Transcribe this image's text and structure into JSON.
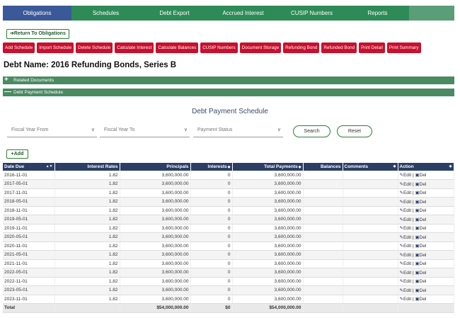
{
  "nav": {
    "tabs": [
      {
        "label": "Obligations",
        "active": true
      },
      {
        "label": "Schedules",
        "active": false
      },
      {
        "label": "Debt Export",
        "active": false
      },
      {
        "label": "Accrued Interest",
        "active": false
      },
      {
        "label": "CUSIP Numbers",
        "active": false
      },
      {
        "label": "Reports",
        "active": false
      }
    ]
  },
  "return_button": "Return To Obligations",
  "actions": [
    "Add Schedule",
    "Import Schedule",
    "Delete Schedule",
    "Calculate Interest",
    "Calculate Balances",
    "CUSIP Numbers",
    "Document Storage",
    "Refunding Bond",
    "Refunded Bond",
    "Print Detail",
    "Print Summary"
  ],
  "debt_name": "Debt Name: 2016 Refunding Bonds, Series B",
  "sections": {
    "related_documents": "Related Documents",
    "debt_payment_schedule": "Debt Payment Schedule"
  },
  "schedule_title": "Debt Payment Schedule",
  "filters": {
    "fiscal_year_from": "Fiscal Year From",
    "fiscal_year_to": "Fiscal Year To",
    "payment_status": "Payment Status",
    "search": "Search",
    "reset": "Reset"
  },
  "add_button": "Add",
  "table": {
    "headers": [
      "Date Due",
      "Interest Rates",
      "Principals",
      "Interests",
      "Total Payments",
      "Balances",
      "Comments",
      "Action"
    ],
    "edit_label": "Edit",
    "del_label": "Del",
    "rows": [
      [
        "2016-11-01",
        "1.82",
        "3,600,000.00",
        "0",
        "3,600,000.00"
      ],
      [
        "2017-05-01",
        "1.82",
        "3,600,000.00",
        "0",
        "3,600,000.00"
      ],
      [
        "2017-11-01",
        "1.82",
        "3,600,000.00",
        "0",
        "3,600,000.00"
      ],
      [
        "2018-05-01",
        "1.82",
        "3,600,000.00",
        "0",
        "3,600,000.00"
      ],
      [
        "2018-11-01",
        "1.82",
        "3,600,000.00",
        "0",
        "3,600,000.00"
      ],
      [
        "2019-05-01",
        "1.82",
        "3,600,000.00",
        "0",
        "3,600,000.00"
      ],
      [
        "2019-11-01",
        "1.82",
        "3,600,000.00",
        "0",
        "3,600,000.00"
      ],
      [
        "2020-05-01",
        "1.82",
        "3,600,000.00",
        "0",
        "3,600,000.00"
      ],
      [
        "2020-11-01",
        "1.82",
        "3,600,000.00",
        "0",
        "3,600,000.00"
      ],
      [
        "2021-05-01",
        "1.82",
        "3,600,000.00",
        "0",
        "3,600,000.00"
      ],
      [
        "2021-11-01",
        "1.82",
        "3,600,000.00",
        "0",
        "3,600,000.00"
      ],
      [
        "2022-05-01",
        "1.82",
        "3,600,000.00",
        "0",
        "3,600,000.00"
      ],
      [
        "2022-11-01",
        "1.82",
        "3,600,000.00",
        "0",
        "3,600,000.00"
      ],
      [
        "2023-05-01",
        "1.82",
        "3,600,000.00",
        "0",
        "3,600,000.00"
      ],
      [
        "2023-11-01",
        "1.82",
        "3,600,000.00",
        "0",
        "3,600,000.00"
      ]
    ],
    "total": {
      "label": "Total",
      "principals": "$54,000,000.00",
      "interests": "$0",
      "total_payments": "$54,000,000.00"
    }
  }
}
